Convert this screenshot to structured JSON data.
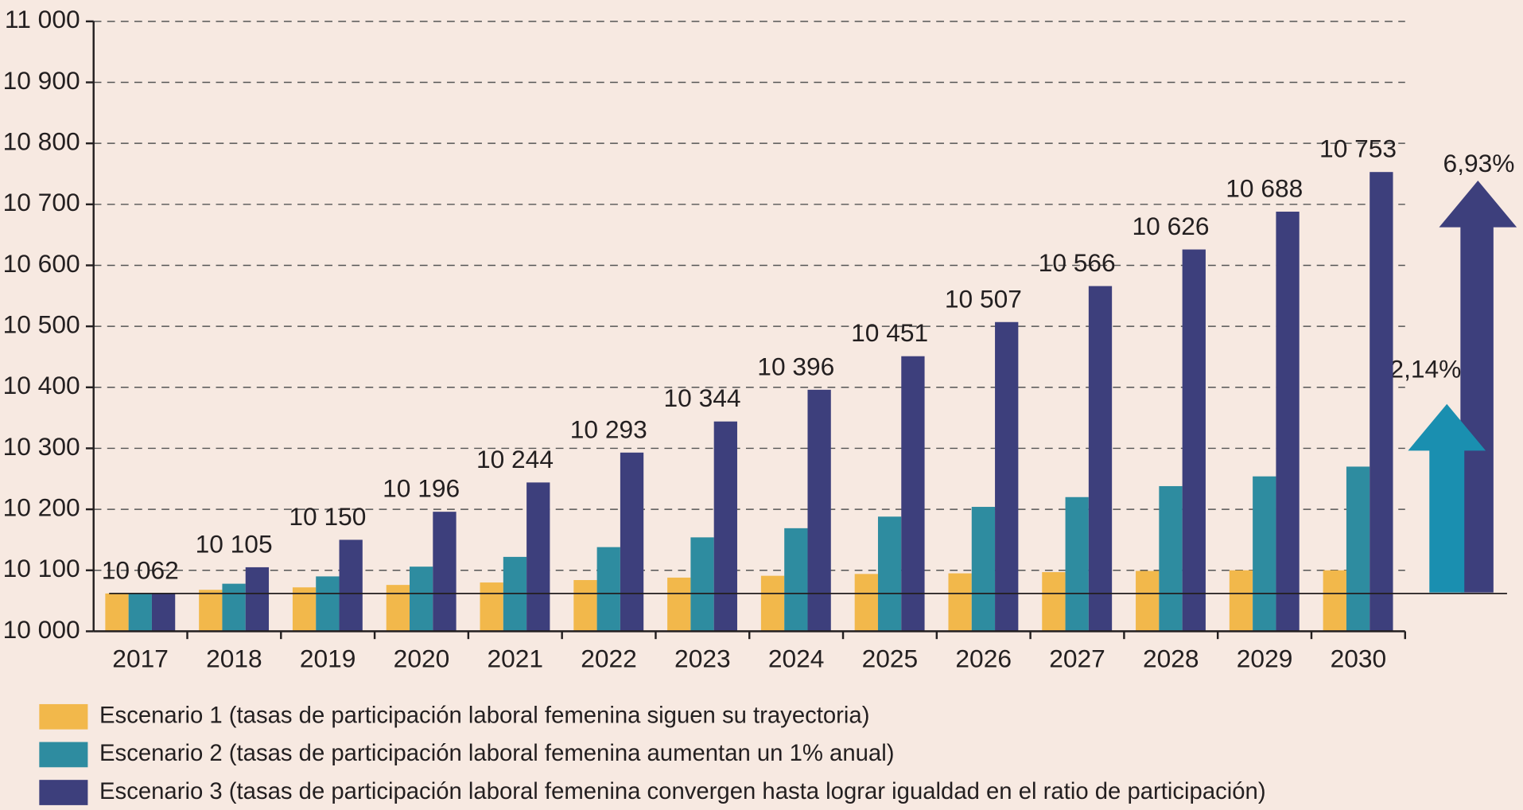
{
  "chart_data": {
    "type": "bar",
    "categories": [
      "2017",
      "2018",
      "2019",
      "2020",
      "2021",
      "2022",
      "2023",
      "2024",
      "2025",
      "2026",
      "2027",
      "2028",
      "2029",
      "2030"
    ],
    "series": [
      {
        "name": "Escenario 1 (tasas de participación laboral femenina siguen su trayectoria)",
        "color": "#f2b84b",
        "values": [
          10062,
          10068,
          10072,
          10076,
          10080,
          10084,
          10088,
          10091,
          10094,
          10095,
          10097,
          10099,
          10100,
          10100
        ]
      },
      {
        "name": "Escenario 2 (tasas de participación laboral femenina aumentan un 1% anual)",
        "color": "#2e8ca0",
        "values": [
          10062,
          10078,
          10090,
          10106,
          10122,
          10138,
          10154,
          10169,
          10188,
          10204,
          10220,
          10238,
          10254,
          10270
        ]
      },
      {
        "name": "Escenario 3 (tasas de participación laboral femenina convergen hasta lograr igualdad en el ratio de participación)",
        "color": "#3d3f7c",
        "values": [
          10062,
          10105,
          10150,
          10196,
          10244,
          10293,
          10344,
          10396,
          10451,
          10507,
          10566,
          10626,
          10688,
          10753
        ],
        "value_labels": [
          "10 062",
          "10 105",
          "10 150",
          "10 196",
          "10 244",
          "10 293",
          "10 344",
          "10 396",
          "10 451",
          "10 507",
          "10 566",
          "10 626",
          "10 688",
          "10 753"
        ]
      }
    ],
    "ylim": [
      10000,
      11000
    ],
    "yticks": [
      {
        "value": 10000,
        "label": "10 000"
      },
      {
        "value": 10100,
        "label": "10 100"
      },
      {
        "value": 10200,
        "label": "10 200"
      },
      {
        "value": 10300,
        "label": "10 300"
      },
      {
        "value": 10400,
        "label": "10 400"
      },
      {
        "value": 10500,
        "label": "10 500"
      },
      {
        "value": 10600,
        "label": "10 600"
      },
      {
        "value": 10700,
        "label": "10 700"
      },
      {
        "value": 10800,
        "label": "10 800"
      },
      {
        "value": 10900,
        "label": "10 900"
      },
      {
        "value": 11000,
        "label": "11 000"
      }
    ],
    "grid": true,
    "annotations": [
      "6,93%",
      "2,14%"
    ]
  }
}
